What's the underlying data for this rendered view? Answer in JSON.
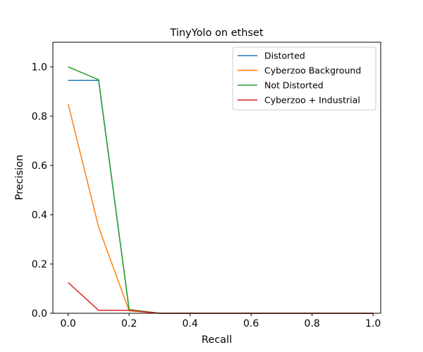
{
  "chart_data": {
    "type": "line",
    "title": "TinyYolo on ethset",
    "xlabel": "Recall",
    "ylabel": "Precision",
    "xlim": [
      -0.05,
      1.025
    ],
    "ylim": [
      0.0,
      1.1
    ],
    "xticks": [
      0.0,
      0.2,
      0.4,
      0.6,
      0.8,
      1.0
    ],
    "xtick_labels": [
      "0.0",
      "0.2",
      "0.4",
      "0.6",
      "0.8",
      "1.0"
    ],
    "yticks": [
      0.0,
      0.2,
      0.4,
      0.6,
      0.8,
      1.0
    ],
    "ytick_labels": [
      "0.0",
      "0.2",
      "0.4",
      "0.6",
      "0.8",
      "1.0"
    ],
    "grid": false,
    "legend_position": "top-right",
    "x": [
      0.0,
      0.1,
      0.2,
      0.3,
      0.4,
      0.5,
      0.6,
      0.7,
      0.8,
      0.9,
      1.0
    ],
    "series": [
      {
        "name": "Distorted",
        "color": "#1f77b4",
        "values": [
          0.945,
          0.945,
          0.015,
          0.0,
          0.0,
          0.0,
          0.0,
          0.0,
          0.0,
          0.0,
          0.0
        ]
      },
      {
        "name": "Cyberzoo Background",
        "color": "#ff7f0e",
        "values": [
          0.85,
          0.35,
          0.01,
          0.0,
          0.0,
          0.0,
          0.0,
          0.0,
          0.0,
          0.0,
          0.0
        ]
      },
      {
        "name": "Not Distorted",
        "color": "#2ca02c",
        "values": [
          1.0,
          0.948,
          0.015,
          0.0,
          0.0,
          0.0,
          0.0,
          0.0,
          0.0,
          0.0,
          0.0
        ]
      },
      {
        "name": "Cyberzoo + Industrial",
        "color": "#d62728",
        "values": [
          0.125,
          0.012,
          0.012,
          0.0,
          0.0,
          0.0,
          0.0,
          0.0,
          0.0,
          0.0,
          0.0
        ]
      }
    ]
  }
}
